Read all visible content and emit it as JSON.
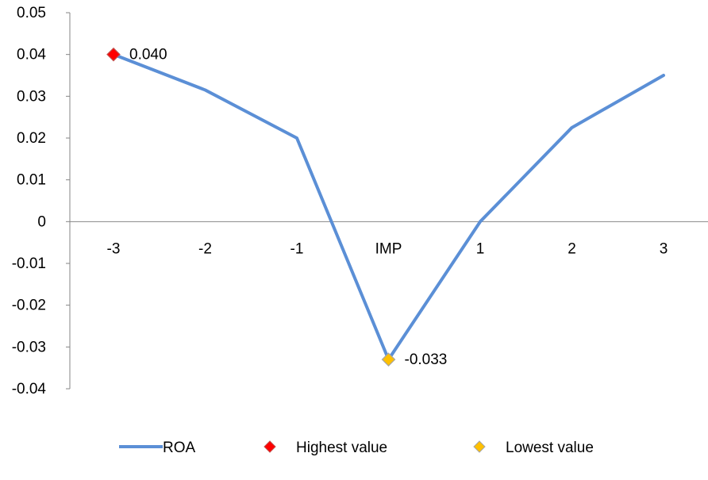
{
  "chart_data": {
    "type": "line",
    "categories": [
      "-3",
      "-2",
      "-1",
      "IMP",
      "1",
      "2",
      "3"
    ],
    "series": [
      {
        "name": "ROA",
        "values": [
          0.04,
          0.0315,
          0.02,
          -0.033,
          0.0,
          0.0225,
          0.035
        ],
        "color": "#5b8fd6"
      }
    ],
    "highlights": [
      {
        "name": "Highest value",
        "index": 0,
        "value": 0.04,
        "label": "0.040",
        "color": "#ff0000",
        "border": "#c0504d"
      },
      {
        "name": "Lowest value",
        "index": 3,
        "value": -0.033,
        "label": "-0.033",
        "color": "#ffc000",
        "border": "#a5a5a5"
      }
    ],
    "ylim": [
      -0.04,
      0.05
    ],
    "yticks": [
      "0.05",
      "0.04",
      "0.03",
      "0.02",
      "0.01",
      "0",
      "-0.01",
      "-0.02",
      "-0.03",
      "-0.04"
    ],
    "grid": false,
    "legend": "bottom",
    "title": "",
    "xlabel": "",
    "ylabel": ""
  }
}
